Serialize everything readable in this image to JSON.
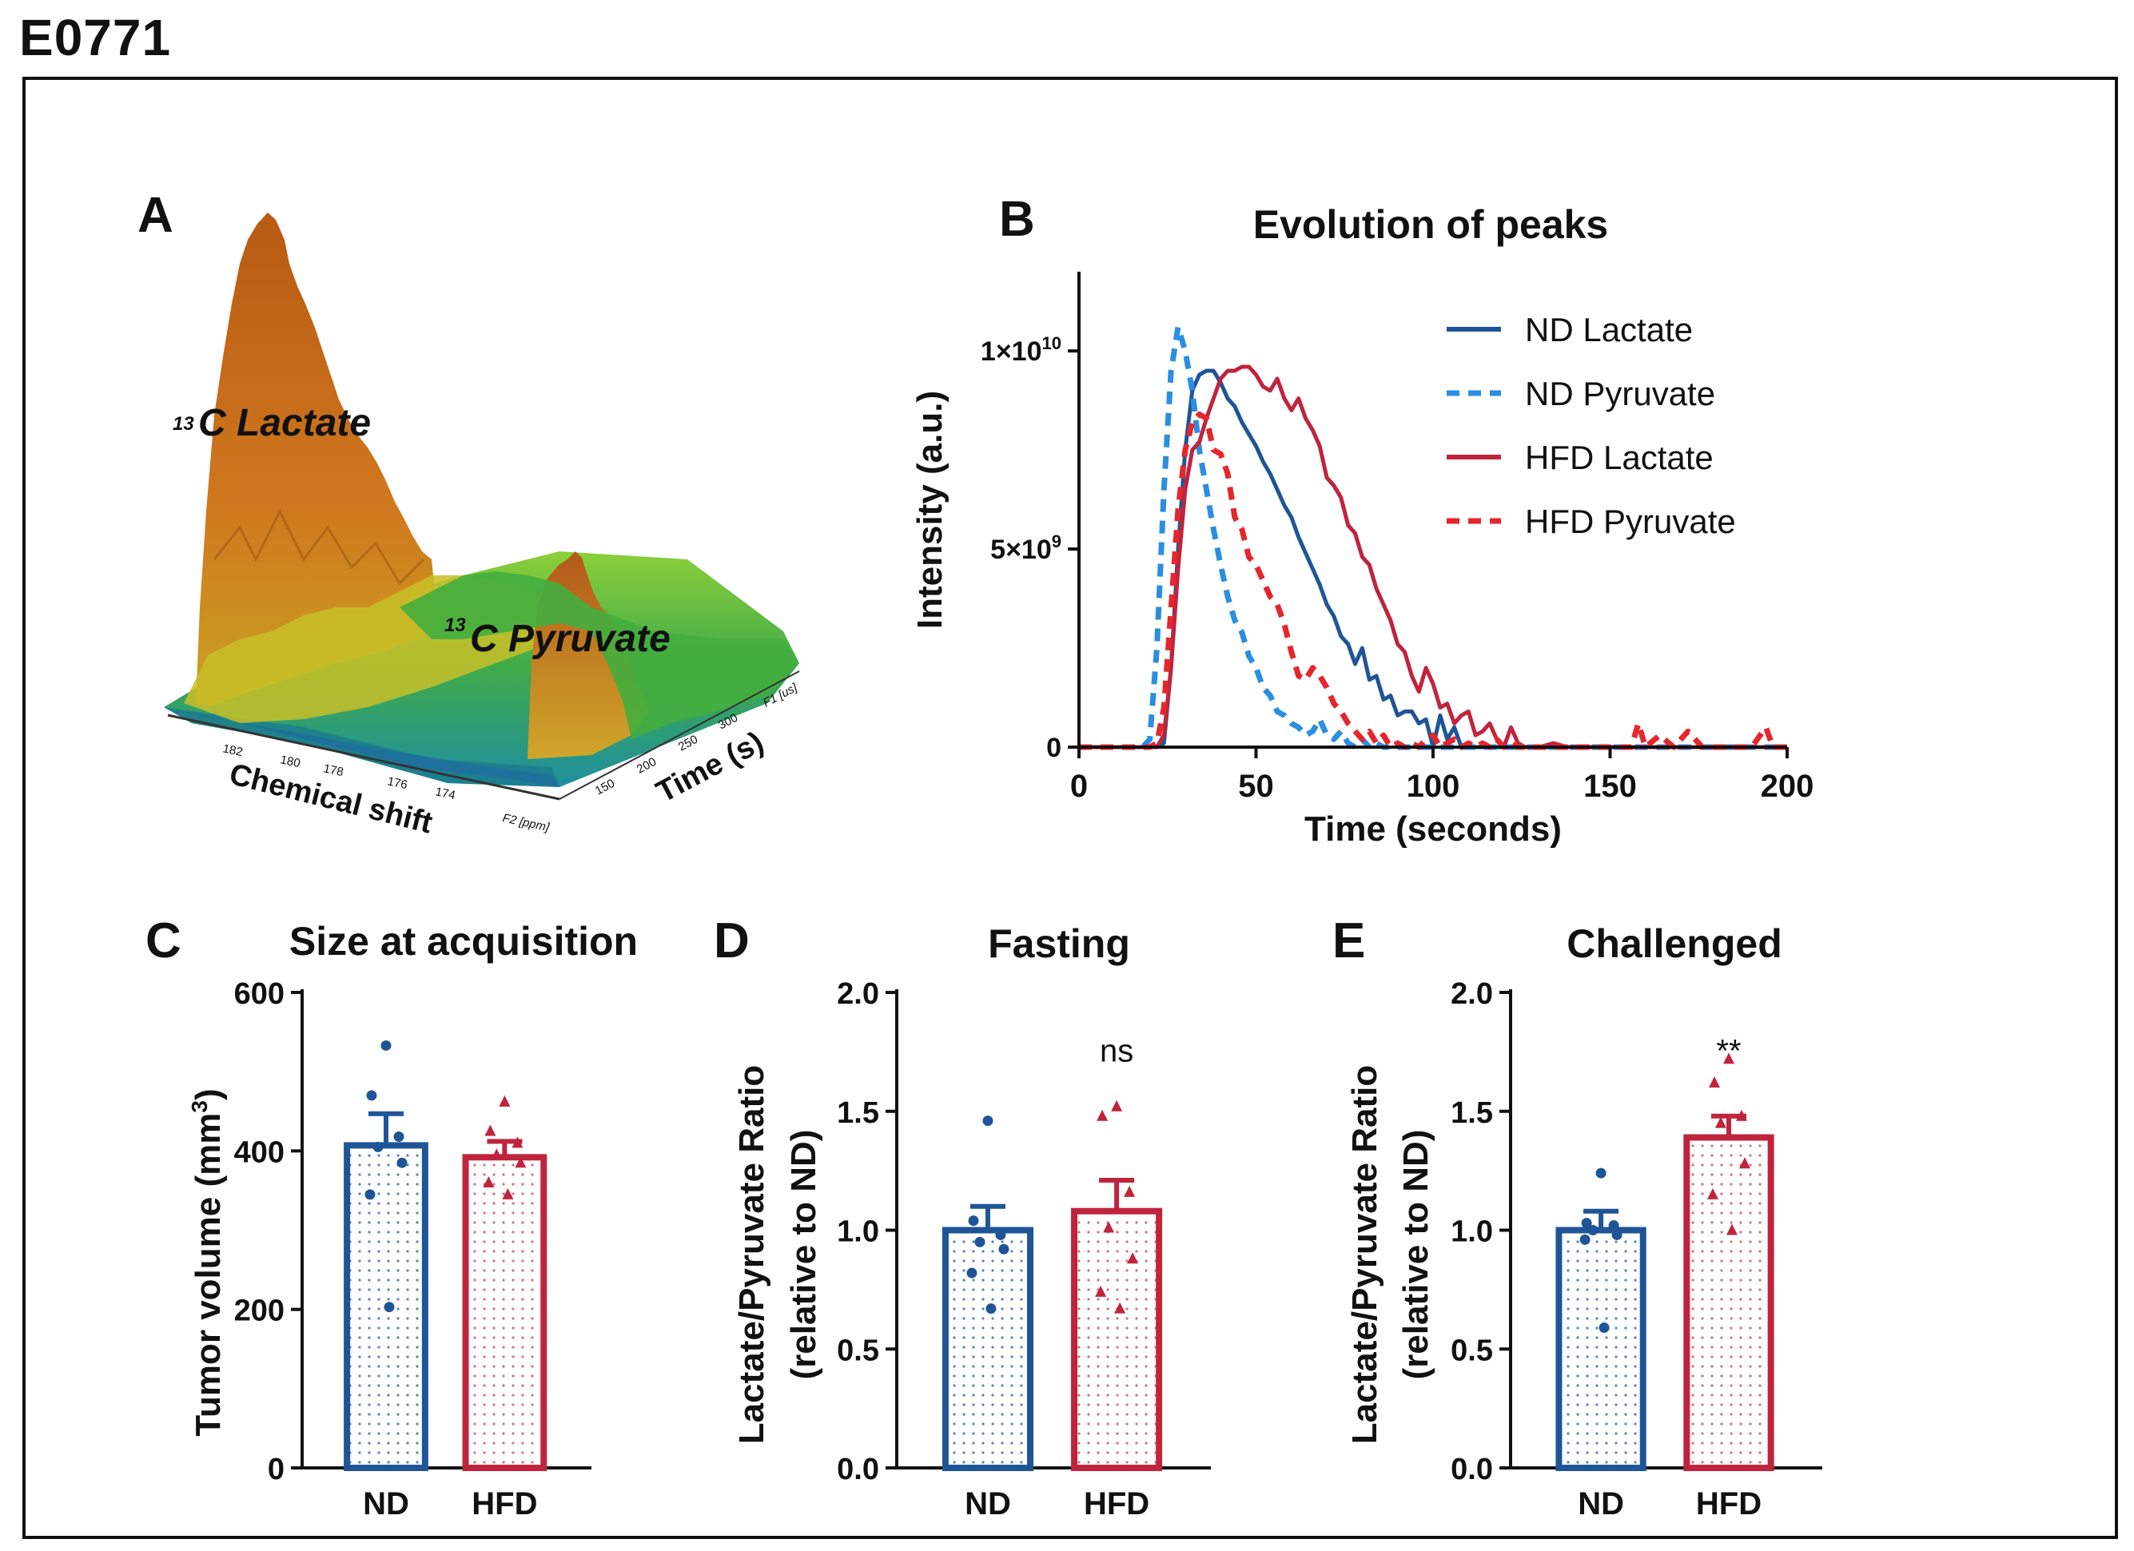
{
  "figure_title": "E0771",
  "colors": {
    "nd": "#1f5597",
    "nd_light": "#2b8ee0",
    "hfd": "#c0243c",
    "hfd_light": "#e5262c",
    "surface_peak": "#c0621a",
    "surface_base": "#3aa84a"
  },
  "chart_data": [
    {
      "panel": "A",
      "type": "surface3d",
      "labels": {
        "lactate_pre": "13",
        "lactate": "C Lactate",
        "pyruvate_pre": "13",
        "pyruvate": "C Pyruvate",
        "xlabel": "Chemical shift",
        "ylabel": "Time (s)",
        "x_ticks": [
          "182",
          "180",
          "178",
          "176",
          "174",
          "F2 [ppm]"
        ],
        "y_ticks": [
          "150",
          "200",
          "250",
          "300",
          "F1 [us]"
        ]
      }
    },
    {
      "panel": "B",
      "type": "line",
      "title": "Evolution of peaks",
      "xlabel": "Time (seconds)",
      "ylabel": "Intensity (a.u.)",
      "xlim": [
        0,
        200
      ],
      "ylim": [
        0,
        12000000000.0
      ],
      "x_ticks": [
        "0",
        "50",
        "100",
        "150",
        "200"
      ],
      "y_ticks": [
        {
          "value": 0,
          "label": "0",
          "exp": ""
        },
        {
          "value": 5000000000.0,
          "label": "5×10",
          "exp": "9"
        },
        {
          "value": 10000000000.0,
          "label": "1×10",
          "exp": "10"
        }
      ],
      "series": [
        {
          "name": "ND Lactate",
          "color": "#1f5597",
          "dash": false,
          "x": [
            0,
            20,
            22,
            24,
            26,
            28,
            30,
            32,
            34,
            36,
            38,
            40,
            42,
            44,
            46,
            48,
            50,
            52,
            54,
            56,
            58,
            60,
            62,
            64,
            66,
            68,
            70,
            72,
            74,
            76,
            78,
            80,
            82,
            84,
            86,
            88,
            90,
            92,
            94,
            96,
            98,
            100,
            102,
            104,
            106,
            108,
            200
          ],
          "y": [
            0,
            0,
            0,
            0.1,
            2.0,
            5.0,
            7.5,
            9.0,
            9.4,
            9.5,
            9.5,
            9.2,
            8.8,
            8.6,
            8.2,
            7.9,
            7.6,
            7.2,
            6.9,
            6.5,
            6.1,
            5.8,
            5.3,
            4.9,
            4.5,
            4.1,
            3.6,
            3.3,
            2.8,
            2.6,
            2.1,
            2.5,
            1.7,
            1.8,
            1.2,
            1.3,
            0.8,
            0.9,
            0.9,
            0.6,
            0.7,
            0.0,
            0.8,
            0.2,
            0.5,
            0.0,
            0
          ]
        },
        {
          "name": "ND Pyruvate",
          "color": "#2b8ee0",
          "dash": true,
          "x": [
            0,
            18,
            20,
            22,
            24,
            26,
            28,
            30,
            32,
            34,
            36,
            38,
            40,
            42,
            44,
            46,
            48,
            50,
            52,
            54,
            56,
            58,
            60,
            62,
            64,
            66,
            68,
            70,
            72,
            74,
            76,
            78,
            80,
            82,
            84,
            86,
            200
          ],
          "y": [
            0,
            0,
            0.2,
            2.5,
            6.5,
            9.5,
            10.6,
            10.0,
            9.0,
            7.5,
            6.5,
            5.5,
            4.6,
            3.8,
            3.2,
            2.9,
            2.3,
            2.0,
            1.5,
            1.3,
            0.9,
            0.8,
            0.6,
            0.5,
            0.3,
            0.4,
            0.7,
            0.3,
            0.2,
            0.4,
            0.1,
            0.0,
            0.2,
            0.0,
            0.1,
            0.0,
            0
          ]
        },
        {
          "name": "HFD Lactate",
          "color": "#c0243c",
          "dash": false,
          "x": [
            0,
            22,
            24,
            26,
            28,
            30,
            32,
            34,
            36,
            38,
            40,
            42,
            44,
            46,
            48,
            50,
            52,
            54,
            56,
            58,
            60,
            62,
            64,
            66,
            68,
            70,
            72,
            74,
            76,
            78,
            80,
            82,
            84,
            86,
            88,
            90,
            92,
            94,
            96,
            98,
            100,
            102,
            104,
            106,
            108,
            110,
            112,
            114,
            116,
            118,
            120,
            122,
            124,
            126,
            130,
            134,
            138,
            142,
            146,
            150,
            200
          ],
          "y": [
            0,
            0,
            0.3,
            2.0,
            4.5,
            6.5,
            7.5,
            7.7,
            8.3,
            8.8,
            9.3,
            9.5,
            9.5,
            9.6,
            9.6,
            9.4,
            9.1,
            9.0,
            9.3,
            8.8,
            8.5,
            8.8,
            8.3,
            8.0,
            7.6,
            6.8,
            6.6,
            6.3,
            5.6,
            5.4,
            4.8,
            4.6,
            4.0,
            3.6,
            3.2,
            2.6,
            2.4,
            1.8,
            1.4,
            2.0,
            1.6,
            1.0,
            1.1,
            0.6,
            0.8,
            0.9,
            0.3,
            0.4,
            0.6,
            0.2,
            0.0,
            0.5,
            0.1,
            0.0,
            0.0,
            0.1,
            0.0,
            0.0,
            0.0,
            0.0,
            0
          ]
        },
        {
          "name": "HFD Pyruvate",
          "color": "#e5262c",
          "dash": true,
          "x": [
            0,
            20,
            22,
            24,
            26,
            28,
            30,
            32,
            34,
            36,
            38,
            40,
            42,
            44,
            46,
            48,
            50,
            52,
            54,
            56,
            58,
            60,
            62,
            64,
            66,
            68,
            70,
            72,
            74,
            76,
            78,
            80,
            82,
            84,
            86,
            88,
            90,
            92,
            94,
            96,
            98,
            100,
            102,
            104,
            106,
            108,
            110,
            112,
            114,
            116,
            118,
            120,
            122,
            124,
            126,
            140,
            144,
            150,
            156,
            158,
            160,
            164,
            168,
            172,
            176,
            190,
            194,
            196,
            200
          ],
          "y": [
            0,
            0,
            0.1,
            1.0,
            3.5,
            6.0,
            7.5,
            8.2,
            8.4,
            8.3,
            7.5,
            7.4,
            6.9,
            5.8,
            5.5,
            4.8,
            4.6,
            4.2,
            3.8,
            3.6,
            3.1,
            2.4,
            1.8,
            1.7,
            2.0,
            1.8,
            1.5,
            1.1,
            0.9,
            0.6,
            0.4,
            0.2,
            0.4,
            0.1,
            0.3,
            0.0,
            0.1,
            0.0,
            0.1,
            0.0,
            0.2,
            0.3,
            0.0,
            0.1,
            0.2,
            0.0,
            0.1,
            0.0,
            0.1,
            0.0,
            0.2,
            0.0,
            0.1,
            0.0,
            0.0,
            0.0,
            0.0,
            0.0,
            0.0,
            0.6,
            0.0,
            0.3,
            0.0,
            0.4,
            0.0,
            0.0,
            0.5,
            0.0,
            0
          ]
        }
      ],
      "legend": [
        "ND Lactate",
        "ND Pyruvate",
        "HFD Lactate",
        "HFD Pyruvate"
      ]
    },
    {
      "panel": "C",
      "type": "bar",
      "title": "Size at acquisition",
      "ylabel_pre": "Tumor volume (mm",
      "ylabel_sup": "3",
      "ylabel_post": ")",
      "categories": [
        "ND",
        "HFD"
      ],
      "values": [
        407,
        392
      ],
      "errors": [
        40,
        20
      ],
      "points": [
        [
          533,
          470,
          418,
          405,
          385,
          345,
          203
        ],
        [
          462,
          425,
          410,
          395,
          385,
          360,
          345
        ]
      ],
      "ylim": [
        0,
        600
      ],
      "y_ticks": [
        "0",
        "200",
        "400",
        "600"
      ],
      "annotation": ""
    },
    {
      "panel": "D",
      "type": "bar",
      "title": "Fasting",
      "ylabel1": "Lactate/Pyruvate Ratio",
      "ylabel2": "(relative to ND)",
      "categories": [
        "ND",
        "HFD"
      ],
      "values": [
        1.0,
        1.08
      ],
      "errors": [
        0.1,
        0.13
      ],
      "points": [
        [
          1.46,
          1.04,
          0.98,
          0.95,
          0.92,
          0.82,
          0.67
        ],
        [
          1.52,
          1.48,
          1.16,
          1.01,
          0.88,
          0.74,
          0.67
        ]
      ],
      "ylim": [
        0,
        2.0
      ],
      "y_ticks": [
        "0.0",
        "0.5",
        "1.0",
        "1.5",
        "2.0"
      ],
      "annotation": "ns"
    },
    {
      "panel": "E",
      "type": "bar",
      "title": "Challenged",
      "ylabel1": "Lactate/Pyruvate Ratio",
      "ylabel2": "(relative to ND)",
      "categories": [
        "ND",
        "HFD"
      ],
      "values": [
        1.0,
        1.39
      ],
      "errors": [
        0.08,
        0.09
      ],
      "points": [
        [
          1.24,
          1.03,
          1.02,
          1.0,
          0.98,
          0.96,
          0.59
        ],
        [
          1.72,
          1.62,
          1.48,
          1.45,
          1.28,
          1.15,
          1.0
        ]
      ],
      "ylim": [
        0,
        2.0
      ],
      "y_ticks": [
        "0.0",
        "0.5",
        "1.0",
        "1.5",
        "2.0"
      ],
      "annotation": "**"
    }
  ]
}
